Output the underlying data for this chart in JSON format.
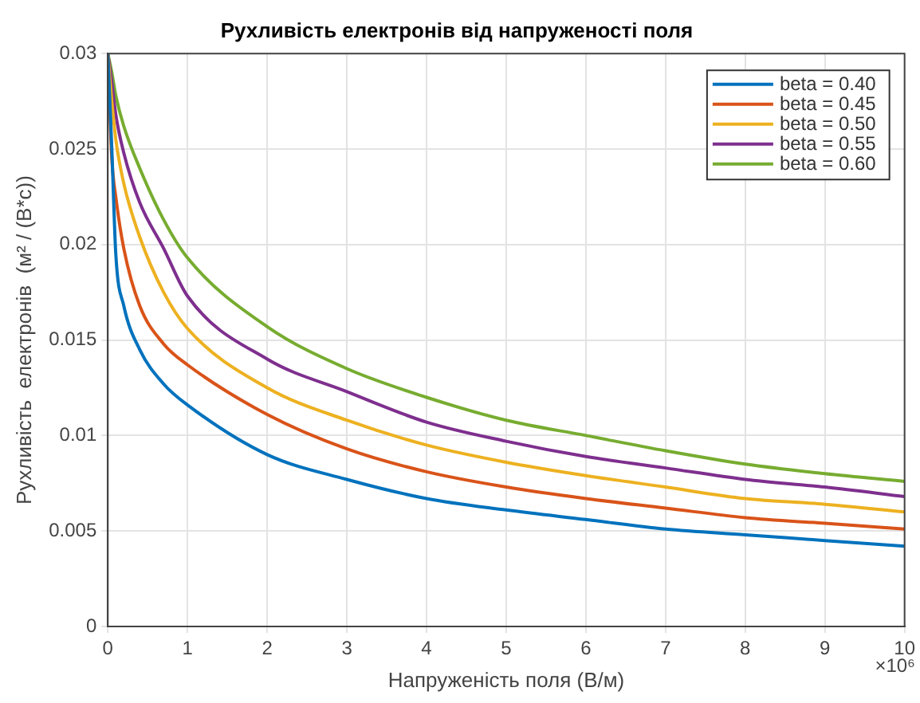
{
  "chart_data": {
    "type": "line",
    "title": "Рухливість електронів від напруженості поля",
    "xlabel": "Напруженість поля (В/м)",
    "ylabel": "Рухливість  електронів  (м² / (В*с))",
    "annotations": [
      "×10⁶"
    ],
    "x": [
      0,
      0.05,
      0.1,
      0.2,
      0.4,
      0.7,
      1,
      2,
      3,
      4,
      5,
      6,
      7,
      8,
      9,
      10
    ],
    "series": [
      {
        "name": "beta = 0.40",
        "color": "#0072bd",
        "values": [
          0.03,
          0.025,
          0.0195,
          0.0168,
          0.0145,
          0.0127,
          0.0116,
          0.009,
          0.0077,
          0.0067,
          0.0061,
          0.0056,
          0.0051,
          0.0048,
          0.0045,
          0.0042
        ]
      },
      {
        "name": "beta = 0.45",
        "color": "#d95319",
        "values": [
          0.03,
          0.0245,
          0.0225,
          0.0198,
          0.0168,
          0.0148,
          0.0137,
          0.0111,
          0.0093,
          0.0081,
          0.0073,
          0.0067,
          0.0062,
          0.0057,
          0.0054,
          0.0051
        ]
      },
      {
        "name": "beta = 0.50",
        "color": "#edb120",
        "values": [
          0.03,
          0.0275,
          0.0255,
          0.0232,
          0.0204,
          0.0175,
          0.0156,
          0.0125,
          0.0108,
          0.0095,
          0.0086,
          0.0079,
          0.0073,
          0.0067,
          0.0064,
          0.006
        ]
      },
      {
        "name": "beta = 0.55",
        "color": "#7e2f8e",
        "values": [
          0.03,
          0.0285,
          0.0268,
          0.0248,
          0.0222,
          0.0198,
          0.0173,
          0.014,
          0.0123,
          0.0107,
          0.0097,
          0.0089,
          0.0083,
          0.0077,
          0.0073,
          0.0068
        ]
      },
      {
        "name": "beta = 0.60",
        "color": "#77ac30",
        "values": [
          0.03,
          0.029,
          0.0278,
          0.0262,
          0.024,
          0.0213,
          0.0193,
          0.0157,
          0.0135,
          0.012,
          0.0108,
          0.01,
          0.0092,
          0.0085,
          0.008,
          0.0076
        ]
      }
    ],
    "xlim": [
      0,
      10
    ],
    "xticks": [
      0,
      1,
      2,
      3,
      4,
      5,
      6,
      7,
      8,
      9,
      10
    ],
    "ylim": [
      0,
      0.03
    ],
    "yticks": [
      0,
      0.005,
      0.01,
      0.015,
      0.02,
      0.025,
      0.03
    ],
    "grid": true,
    "legend": "top right",
    "marker": "none",
    "line_style": "solid"
  }
}
